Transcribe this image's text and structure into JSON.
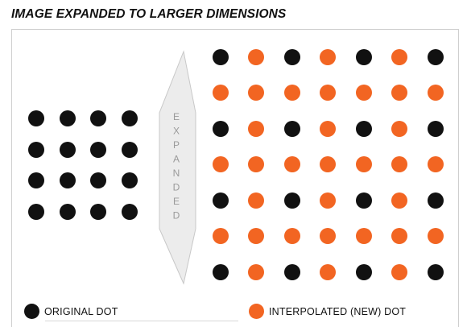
{
  "title": "IMAGE EXPANDED TO LARGER DIMENSIONS",
  "arrow_label": "EXPANDED",
  "colors": {
    "original": "#111111",
    "interpolated": "#f26522",
    "arrow_fill": "#ececec",
    "arrow_stroke": "#c8c8c8",
    "arrow_text": "#9a9a9a"
  },
  "original_grid": {
    "rows": 4,
    "cols": 4
  },
  "expanded_grid": {
    "rows": 7,
    "cols": 7
  },
  "legend": {
    "original_label": "ORIGINAL DOT",
    "interpolated_label": "INTERPOLATED (NEW) DOT"
  }
}
